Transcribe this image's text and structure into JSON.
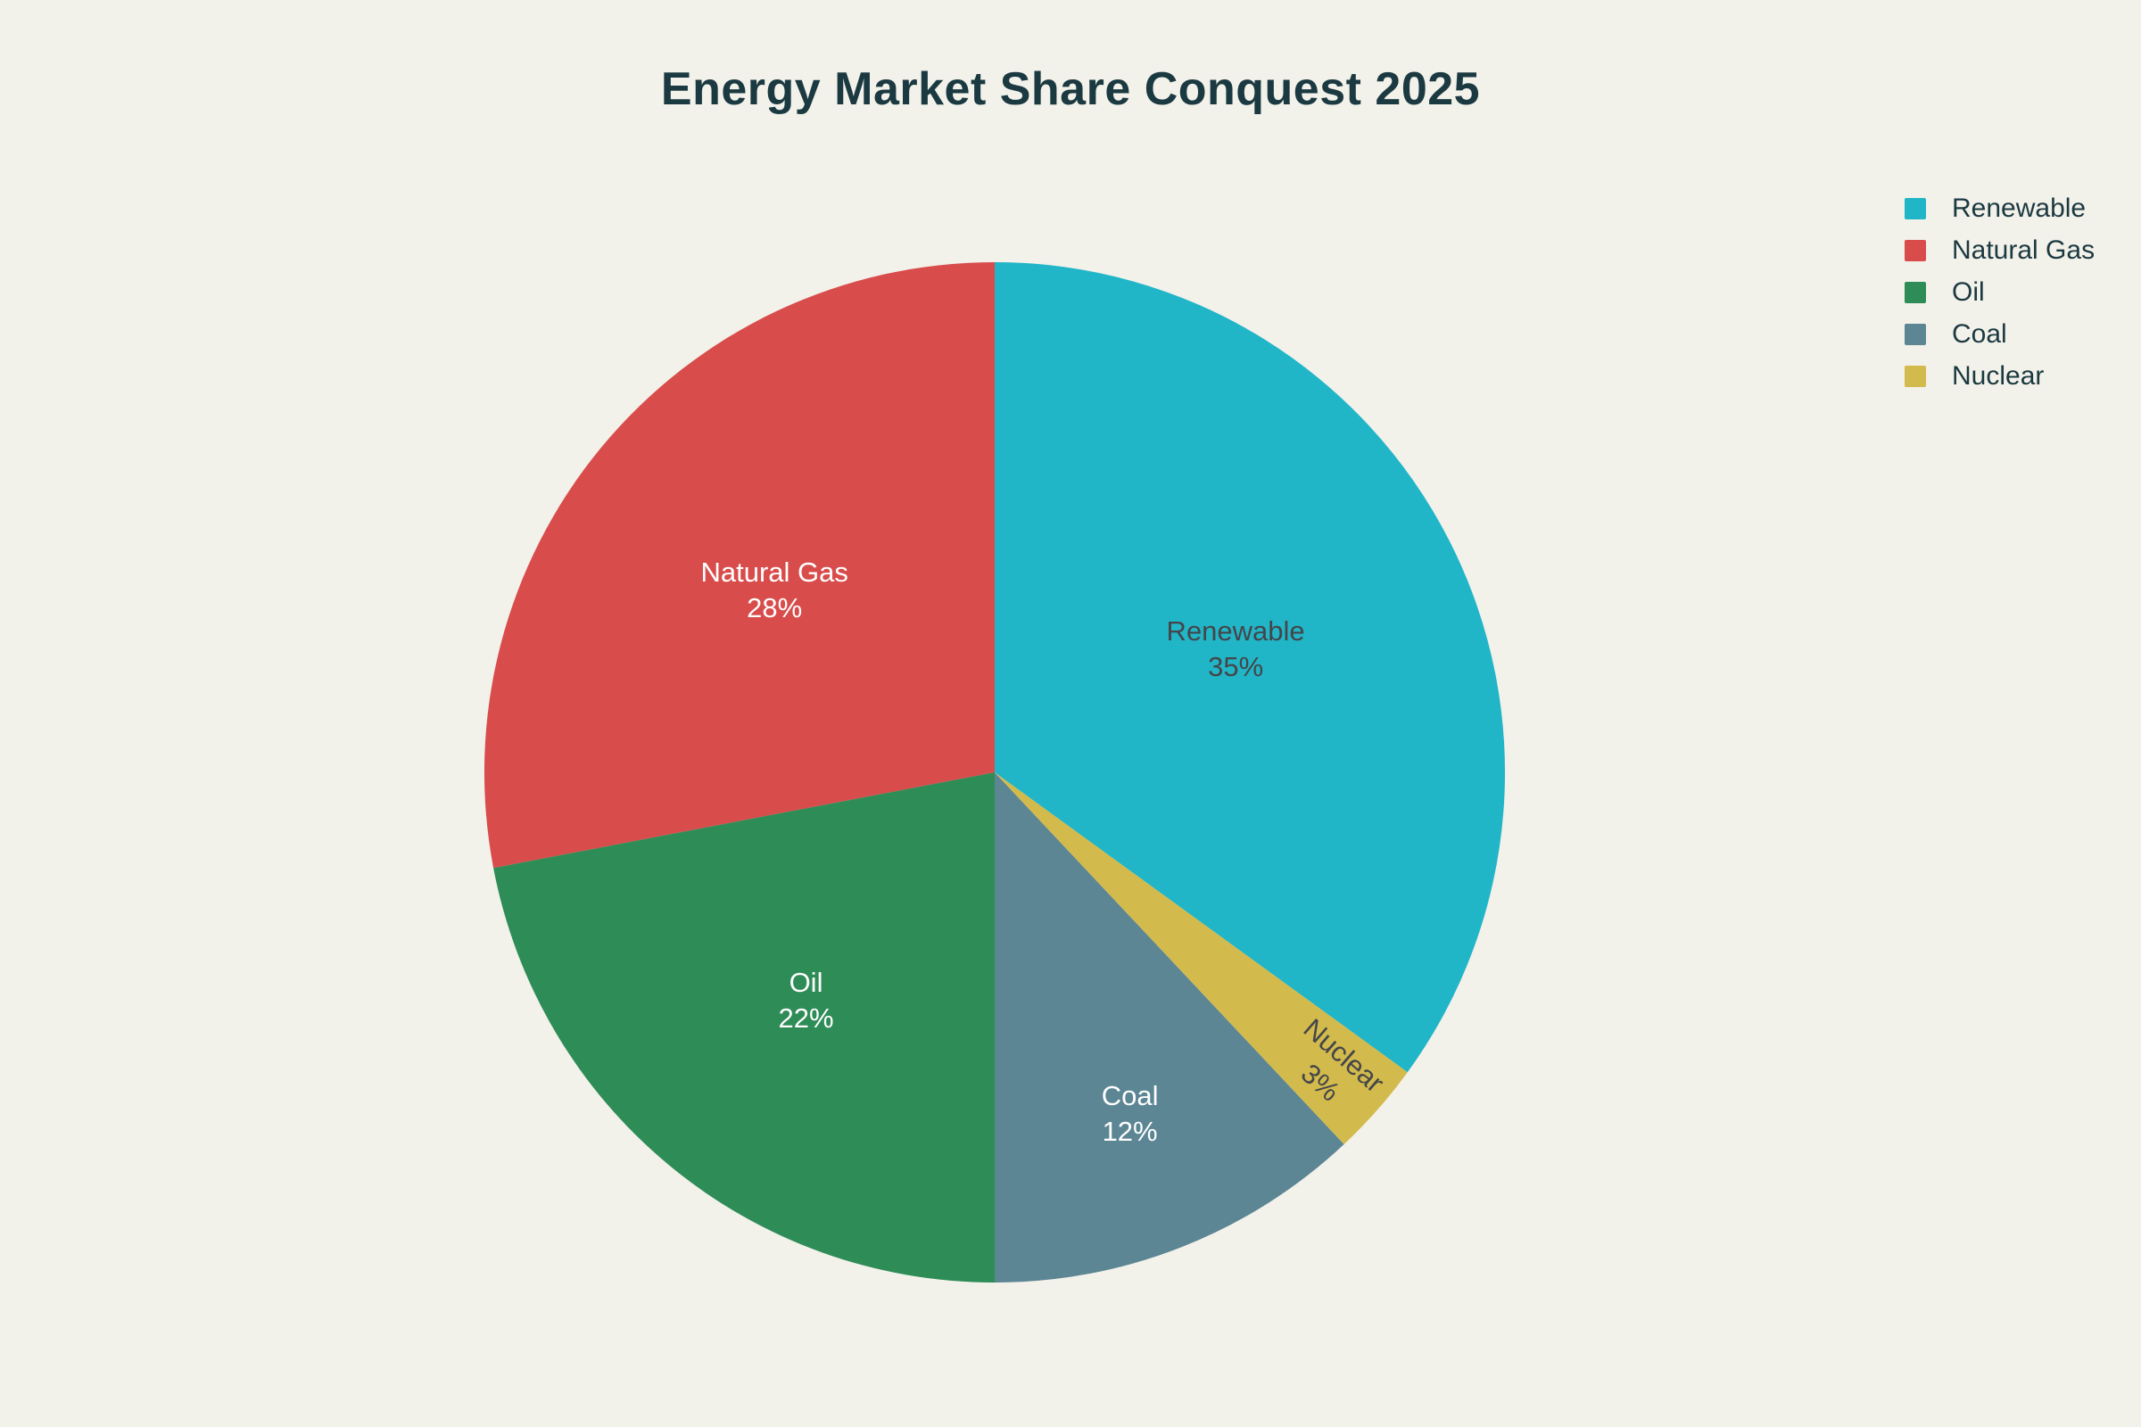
{
  "page": {
    "background_color": "#f2f1ea"
  },
  "chart_data": {
    "type": "pie",
    "title": "Energy Market Share Conquest 2025",
    "title_color": "#1b3940",
    "total_pct": 100,
    "slices": [
      {
        "label": "Renewable",
        "value": 35,
        "pct_label": "35%",
        "color": "#21b5c8"
      },
      {
        "label": "Natural Gas",
        "value": 28,
        "pct_label": "28%",
        "color": "#d84c4b"
      },
      {
        "label": "Oil",
        "value": 22,
        "pct_label": "22%",
        "color": "#2e8c57"
      },
      {
        "label": "Coal",
        "value": 12,
        "pct_label": "12%",
        "color": "#5c8694"
      },
      {
        "label": "Nuclear",
        "value": 3,
        "pct_label": "3%",
        "color": "#d3ba4c"
      }
    ],
    "legend": {
      "position": "right",
      "text_color": "#1b3940",
      "items": [
        "Renewable",
        "Natural Gas",
        "Oil",
        "Coal",
        "Nuclear"
      ]
    },
    "label_text_colors": {
      "dark": "#444649",
      "light": "#ffffff"
    }
  }
}
